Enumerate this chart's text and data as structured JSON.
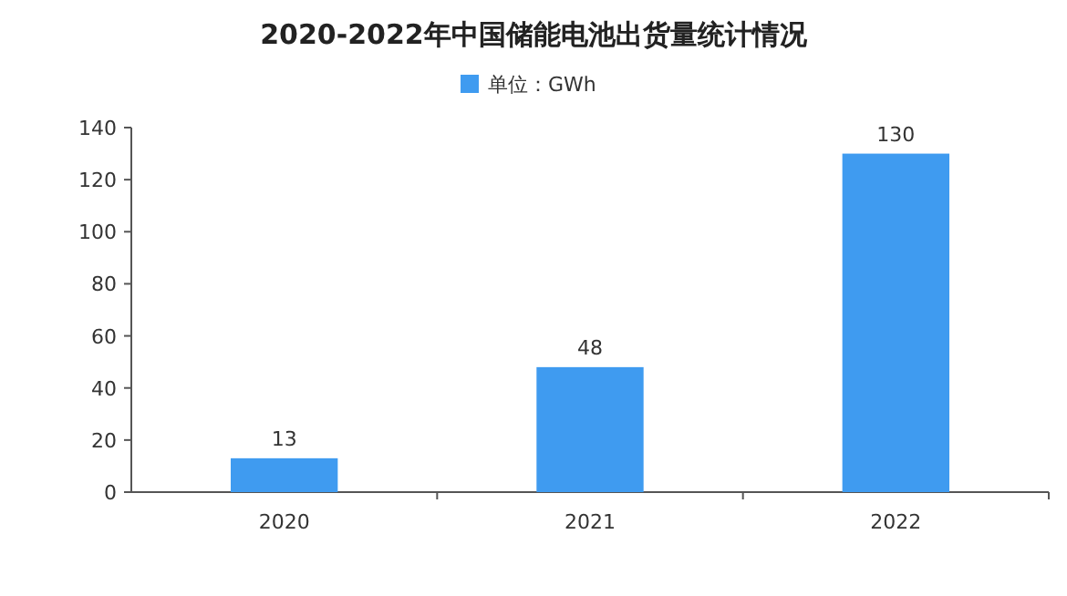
{
  "chart_data": {
    "type": "bar",
    "title": "2020-2022年中国储能电池出货量统计情况",
    "categories": [
      "2020",
      "2021",
      "2022"
    ],
    "series": [
      {
        "name": "单位：GWh",
        "color": "#3f9bf0",
        "values": [
          13,
          48,
          130
        ]
      }
    ],
    "ylim": [
      0,
      140
    ],
    "yticks": [
      0,
      20,
      40,
      60,
      80,
      100,
      120,
      140
    ],
    "data_labels": true,
    "legend": "top",
    "grid": false
  }
}
